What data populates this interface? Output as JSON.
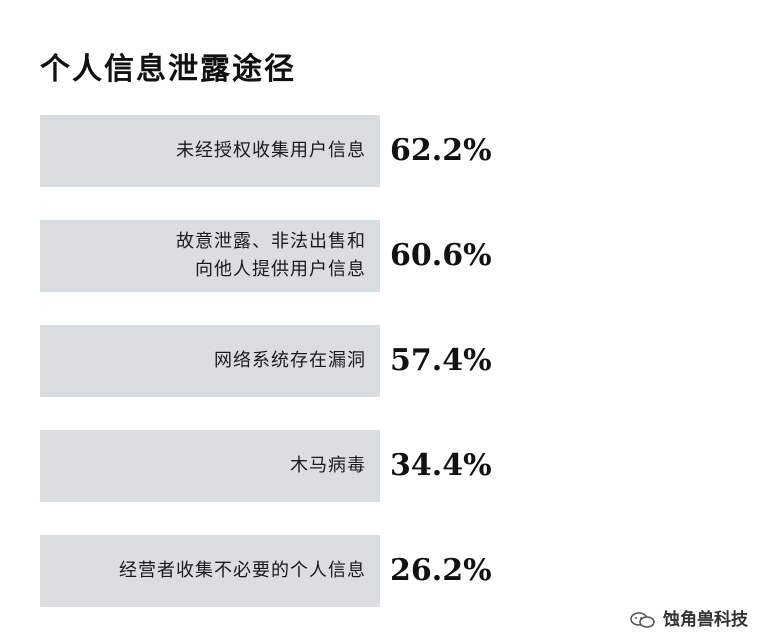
{
  "chart_data": {
    "type": "bar",
    "orientation": "horizontal",
    "title": "个人信息泄露途径",
    "categories": [
      [
        "未经授权收集用户信息"
      ],
      [
        "故意泄露、非法出售和",
        "向他人提供用户信息"
      ],
      [
        "网络系统存在漏洞"
      ],
      [
        "木马病毒"
      ],
      [
        "经营者收集不必要的个人信息"
      ]
    ],
    "values": [
      62.2,
      60.6,
      57.4,
      34.4,
      26.2
    ],
    "value_labels": [
      "62.2%",
      "60.6%",
      "57.4%",
      "34.4%",
      "26.2%"
    ],
    "bar_colors": [
      "#4a8af0",
      "#2f6fe8",
      "#4a8af0",
      "#2f6fe8",
      "#4a8af0"
    ],
    "label_background": "#dadee1",
    "grid": false,
    "legend": "none"
  },
  "watermark": {
    "text": "蚀角兽科技",
    "icon": "wechat-bubbles-icon"
  }
}
